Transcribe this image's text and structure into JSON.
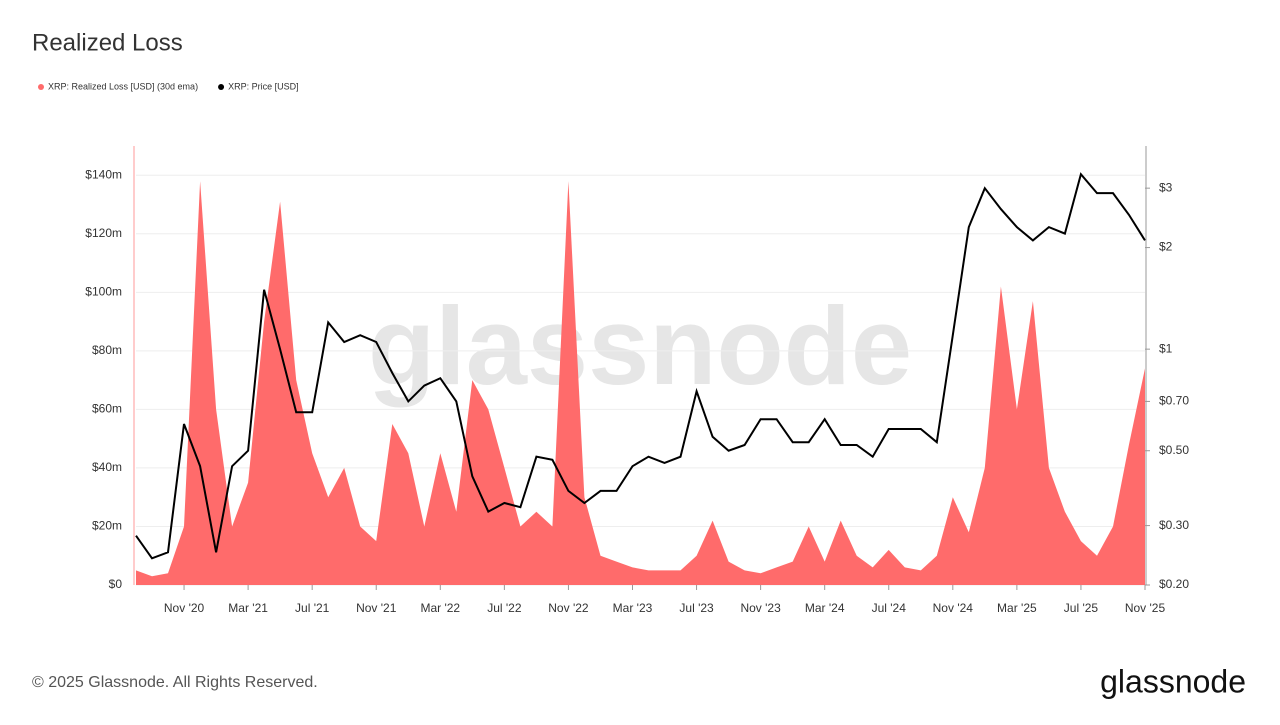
{
  "chart_data": {
    "type": "area-line",
    "title": "Realized Loss",
    "watermark": "glassnode",
    "footer": "© 2025 Glassnode. All Rights Reserved.",
    "logo": "glassnode",
    "x": [
      "2020-08",
      "2020-09",
      "2020-10",
      "2020-11",
      "2020-12",
      "2021-01",
      "2021-02",
      "2021-03",
      "2021-04",
      "2021-05",
      "2021-06",
      "2021-07",
      "2021-08",
      "2021-09",
      "2021-10",
      "2021-11",
      "2021-12",
      "2022-01",
      "2022-02",
      "2022-03",
      "2022-04",
      "2022-05",
      "2022-06",
      "2022-07",
      "2022-08",
      "2022-09",
      "2022-10",
      "2022-11",
      "2022-12",
      "2023-01",
      "2023-02",
      "2023-03",
      "2023-04",
      "2023-05",
      "2023-06",
      "2023-07",
      "2023-08",
      "2023-09",
      "2023-10",
      "2023-11",
      "2023-12",
      "2024-01",
      "2024-02",
      "2024-03",
      "2024-04",
      "2024-05",
      "2024-06",
      "2024-07",
      "2024-08",
      "2024-09",
      "2024-10",
      "2024-11",
      "2024-12",
      "2025-01",
      "2025-02",
      "2025-03",
      "2025-04",
      "2025-05",
      "2025-06",
      "2025-07",
      "2025-08",
      "2025-09",
      "2025-10",
      "2025-11"
    ],
    "series": [
      {
        "name": "XRP: Realized Loss [USD] (30d ema)",
        "color": "#ff6b6b",
        "values": [
          5000000,
          3000000,
          4000000,
          20000000,
          138000000,
          60000000,
          20000000,
          35000000,
          90000000,
          131000000,
          70000000,
          45000000,
          30000000,
          40000000,
          20000000,
          15000000,
          55000000,
          45000000,
          20000000,
          45000000,
          25000000,
          70000000,
          60000000,
          40000000,
          20000000,
          25000000,
          20000000,
          138000000,
          30000000,
          10000000,
          8000000,
          6000000,
          5000000,
          5000000,
          5000000,
          10000000,
          22000000,
          8000000,
          5000000,
          4000000,
          6000000,
          8000000,
          20000000,
          8000000,
          22000000,
          10000000,
          6000000,
          12000000,
          6000000,
          5000000,
          10000000,
          30000000,
          18000000,
          40000000,
          102000000,
          60000000,
          97000000,
          40000000,
          25000000,
          15000000,
          10000000,
          20000000,
          48000000,
          74000000
        ]
      },
      {
        "name": "XRP: Price [USD]",
        "color": "#000000",
        "axis": "y2",
        "values": [
          0.28,
          0.24,
          0.25,
          0.6,
          0.45,
          0.25,
          0.45,
          0.5,
          1.5,
          1.0,
          0.65,
          0.65,
          1.2,
          1.05,
          1.1,
          1.05,
          0.85,
          0.7,
          0.78,
          0.82,
          0.7,
          0.42,
          0.33,
          0.35,
          0.34,
          0.48,
          0.47,
          0.38,
          0.35,
          0.38,
          0.38,
          0.45,
          0.48,
          0.46,
          0.48,
          0.75,
          0.55,
          0.5,
          0.52,
          0.62,
          0.62,
          0.53,
          0.53,
          0.62,
          0.52,
          0.52,
          0.48,
          0.58,
          0.58,
          0.58,
          0.53,
          1.1,
          2.3,
          3.0,
          2.6,
          2.3,
          2.1,
          2.3,
          2.2,
          3.3,
          2.9,
          2.9,
          2.5,
          2.1
        ]
      }
    ],
    "xlim": [
      "2020-08",
      "2025-11"
    ],
    "xticks": [
      {
        "value": "2020-11",
        "label": "Nov '20"
      },
      {
        "value": "2021-03",
        "label": "Mar '21"
      },
      {
        "value": "2021-07",
        "label": "Jul '21"
      },
      {
        "value": "2021-11",
        "label": "Nov '21"
      },
      {
        "value": "2022-03",
        "label": "Mar '22"
      },
      {
        "value": "2022-07",
        "label": "Jul '22"
      },
      {
        "value": "2022-11",
        "label": "Nov '22"
      },
      {
        "value": "2023-03",
        "label": "Mar '23"
      },
      {
        "value": "2023-07",
        "label": "Jul '23"
      },
      {
        "value": "2023-11",
        "label": "Nov '23"
      },
      {
        "value": "2024-03",
        "label": "Mar '24"
      },
      {
        "value": "2024-07",
        "label": "Jul '24"
      },
      {
        "value": "2024-11",
        "label": "Nov '24"
      },
      {
        "value": "2025-03",
        "label": "Mar '25"
      },
      {
        "value": "2025-07",
        "label": "Jul '25"
      },
      {
        "value": "2025-11",
        "label": "Nov '25"
      }
    ],
    "ylim": [
      0,
      150000000
    ],
    "yticks": [
      {
        "value": 0,
        "label": "$0"
      },
      {
        "value": 20000000,
        "label": "$20m"
      },
      {
        "value": 40000000,
        "label": "$40m"
      },
      {
        "value": 60000000,
        "label": "$60m"
      },
      {
        "value": 80000000,
        "label": "$80m"
      },
      {
        "value": 100000000,
        "label": "$100m"
      },
      {
        "value": 120000000,
        "label": "$120m"
      },
      {
        "value": 140000000,
        "label": "$140m"
      }
    ],
    "y2lim": [
      0.2,
      4
    ],
    "y2ticks": [
      {
        "value": 0.2,
        "label": "$0.20"
      },
      {
        "value": 0.3,
        "label": "$0.30"
      },
      {
        "value": 0.5,
        "label": "$0.50"
      },
      {
        "value": 0.7,
        "label": "$0.70"
      },
      {
        "value": 1,
        "label": "$1"
      },
      {
        "value": 2,
        "label": "$2"
      },
      {
        "value": 3,
        "label": "$3"
      }
    ],
    "y2scale": "log",
    "grid": true
  }
}
